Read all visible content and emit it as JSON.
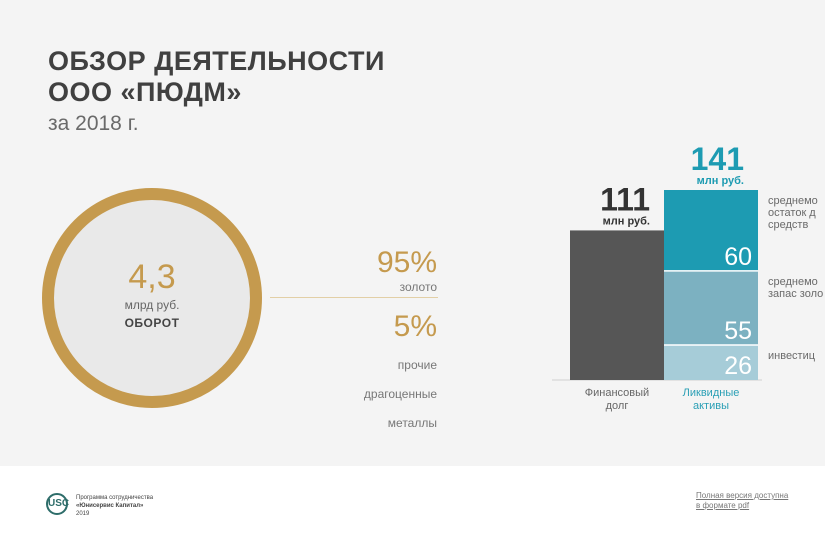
{
  "header": {
    "title_line1": "ОБЗОР ДЕЯТЕЛЬНОСТИ",
    "title_line2": "ООО «ПЮДМ»",
    "subtitle": "за 2018 г."
  },
  "turnover": {
    "value": "4,3",
    "unit": "млрд руб.",
    "label": "ОБОРОТ",
    "ring_color": "#c59a4e"
  },
  "shares": [
    {
      "percent": "95%",
      "label": [
        "золото"
      ]
    },
    {
      "percent": "5%",
      "label": [
        "прочие",
        "драгоценные",
        "металлы"
      ]
    }
  ],
  "chart_data": {
    "type": "bar",
    "stacked": true,
    "categories": [
      [
        "Финансовый",
        "долг"
      ],
      [
        "Ликвидные",
        "активы"
      ]
    ],
    "totals": [
      111,
      141
    ],
    "total_unit": "млн руб.",
    "series": [
      {
        "values": [
          111,
          null
        ],
        "color": "#565656"
      },
      {
        "values": [
          null,
          26
        ],
        "color": "#a6ccd8",
        "description": [
          "инвестиц"
        ]
      },
      {
        "values": [
          null,
          55
        ],
        "color": "#7cb1c1",
        "description": [
          "среднемо",
          "запас золо"
        ]
      },
      {
        "values": [
          null,
          60
        ],
        "color": "#1d9bb2",
        "description": [
          "среднемо",
          "остаток д",
          "средств"
        ]
      }
    ],
    "category_label_colors": [
      "#666666",
      "#2a9fb5"
    ],
    "total_colors": [
      "#333333",
      "#1d9bb2"
    ],
    "ylim": [
      0,
      141
    ],
    "grid": false
  },
  "footer": {
    "logo_text": "USC",
    "company_lines": [
      "Программа сотрудничества",
      "«Юнисервис Капитал»",
      "2019"
    ],
    "link_lines": [
      "Полная версия доступна",
      "в формате pdf"
    ]
  }
}
